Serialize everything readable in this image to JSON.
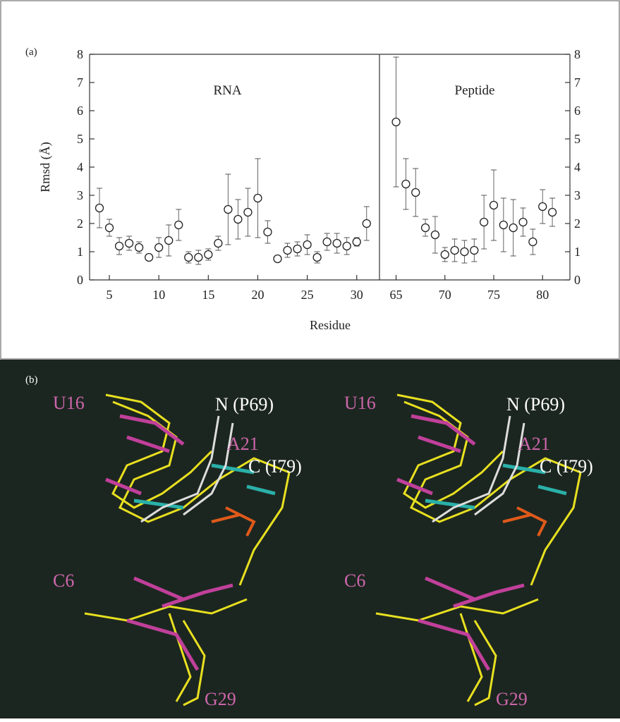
{
  "panel_labels": [
    "(a)",
    "(b)"
  ],
  "chart_data": [
    {
      "type": "errorbar",
      "annotation": "RNA",
      "ylabel": "Rmsd (Å)",
      "xlabel": "Residue",
      "x": [
        4,
        5,
        6,
        7,
        8,
        9,
        10,
        11,
        12,
        13,
        14,
        15,
        16,
        17,
        18,
        19,
        20,
        21,
        22,
        23,
        24,
        25,
        26,
        27,
        28,
        29,
        30,
        31
      ],
      "values": [
        2.55,
        1.85,
        1.2,
        1.3,
        1.15,
        0.8,
        1.15,
        1.4,
        1.95,
        0.8,
        0.8,
        0.9,
        1.3,
        2.5,
        2.15,
        2.4,
        2.9,
        1.7,
        0.75,
        1.05,
        1.1,
        1.25,
        0.8,
        1.35,
        1.3,
        1.2,
        1.35,
        2.0
      ],
      "errors": [
        0.7,
        0.3,
        0.3,
        0.25,
        0.2,
        0.1,
        0.35,
        0.55,
        0.55,
        0.2,
        0.25,
        0.2,
        0.25,
        1.25,
        0.7,
        0.85,
        1.4,
        0.4,
        0.05,
        0.25,
        0.25,
        0.35,
        0.2,
        0.3,
        0.35,
        0.3,
        0.15,
        0.6
      ],
      "xlim": [
        3,
        32.3
      ],
      "xticks": [
        5,
        10,
        15,
        20,
        25,
        30
      ],
      "ylim": [
        0,
        8
      ],
      "yticks": [
        0,
        1,
        2,
        3,
        4,
        5,
        6,
        7,
        8
      ]
    },
    {
      "type": "errorbar",
      "annotation": "Peptide",
      "x": [
        65,
        66,
        67,
        68,
        69,
        70,
        71,
        72,
        73,
        74,
        75,
        76,
        77,
        78,
        79,
        80,
        81
      ],
      "values": [
        5.6,
        3.4,
        3.1,
        1.85,
        1.6,
        0.9,
        1.05,
        1.0,
        1.05,
        2.05,
        2.65,
        1.95,
        1.85,
        2.05,
        1.35,
        2.6,
        2.4
      ],
      "errors": [
        2.3,
        0.9,
        0.85,
        0.3,
        0.65,
        0.25,
        0.4,
        0.4,
        0.4,
        0.95,
        1.25,
        0.95,
        1.0,
        0.5,
        0.45,
        0.6,
        0.5
      ],
      "xlim": [
        63.3,
        82.8
      ],
      "xticks": [
        65,
        70,
        75,
        80
      ],
      "ylim": [
        0,
        8
      ],
      "yticks": [
        0,
        1,
        2,
        3,
        4,
        5,
        6,
        7,
        8
      ]
    }
  ],
  "image_labels": [
    "U16",
    "N (P69)",
    "A21",
    "C (I79)",
    "C6",
    "G29"
  ]
}
